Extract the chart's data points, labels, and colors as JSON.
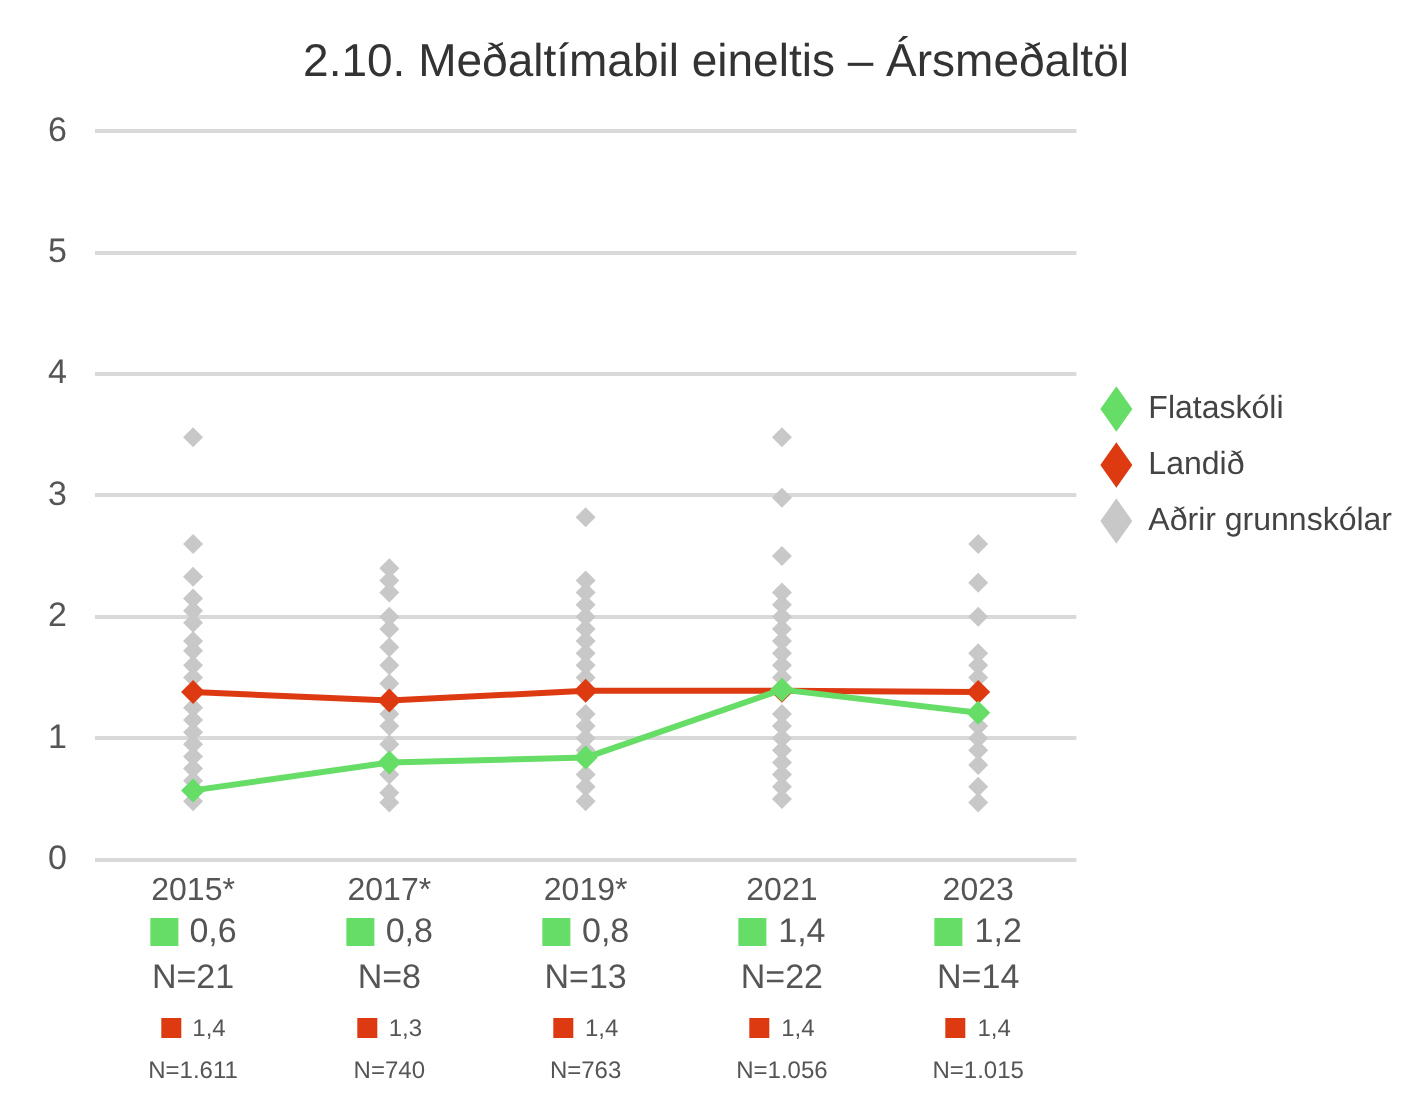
{
  "chart_data": {
    "type": "line",
    "title": "2.10. Meðaltímabil eineltis – Ársmeðaltöl",
    "categories": [
      "2015*",
      "2017*",
      "2019*",
      "2021",
      "2023"
    ],
    "series": [
      {
        "name": "Flataskóli",
        "color": "#66dd66",
        "values": [
          0.57,
          0.8,
          0.84,
          1.4,
          1.21
        ],
        "value_labels": [
          "0,6",
          "0,8",
          "0,8",
          "1,4",
          "1,2"
        ]
      },
      {
        "name": "Landið",
        "color": "#dd3a12",
        "values": [
          1.38,
          1.31,
          1.39,
          1.39,
          1.38
        ],
        "value_labels": [
          "1,4",
          "1,3",
          "1,4",
          "1,4",
          "1,4"
        ]
      },
      {
        "name": "Aðrir grunnskólar",
        "type": "scatter",
        "color": "#c8c8c8",
        "values": [
          3.48,
          2.4,
          2.82,
          3.48,
          2.6
        ]
      },
      {
        "type": "scatter",
        "color": "#c8c8c8",
        "values": [
          2.6,
          2.3,
          2.3,
          2.98,
          2.28
        ]
      },
      {
        "type": "scatter",
        "color": "#c8c8c8",
        "values": [
          2.33,
          2.2,
          2.2,
          2.5,
          2.0
        ]
      },
      {
        "type": "scatter",
        "color": "#c8c8c8",
        "values": [
          2.15,
          2.0,
          2.1,
          2.2,
          1.7
        ]
      },
      {
        "type": "scatter",
        "color": "#c8c8c8",
        "values": [
          2.05,
          1.9,
          2.0,
          2.1,
          1.6
        ]
      },
      {
        "type": "scatter",
        "color": "#c8c8c8",
        "values": [
          1.95,
          1.75,
          1.9,
          2.0,
          1.5
        ]
      },
      {
        "type": "scatter",
        "color": "#c8c8c8",
        "values": [
          1.8,
          1.6,
          1.8,
          1.9,
          1.1
        ]
      },
      {
        "type": "scatter",
        "color": "#c8c8c8",
        "values": [
          1.72,
          1.45,
          1.7,
          1.8,
          1.0
        ]
      },
      {
        "type": "scatter",
        "color": "#c8c8c8",
        "values": [
          1.6,
          1.2,
          1.6,
          1.7,
          0.9
        ]
      },
      {
        "type": "scatter",
        "color": "#c8c8c8",
        "values": [
          1.5,
          1.1,
          1.5,
          1.6,
          0.78
        ]
      },
      {
        "type": "scatter",
        "color": "#c8c8c8",
        "values": [
          1.25,
          0.95,
          1.2,
          1.5,
          0.6
        ]
      },
      {
        "type": "scatter",
        "color": "#c8c8c8",
        "values": [
          1.15,
          0.7,
          1.1,
          1.2,
          0.47
        ]
      },
      {
        "type": "scatter",
        "color": "#c8c8c8",
        "values": [
          1.05,
          0.55,
          1.0,
          1.1,
          null
        ]
      },
      {
        "type": "scatter",
        "color": "#c8c8c8",
        "values": [
          0.95,
          0.47,
          0.9,
          1.0,
          null
        ]
      },
      {
        "type": "scatter",
        "color": "#c8c8c8",
        "values": [
          0.85,
          null,
          0.7,
          0.9,
          null
        ]
      },
      {
        "type": "scatter",
        "color": "#c8c8c8",
        "values": [
          0.75,
          null,
          0.6,
          0.8,
          null
        ]
      },
      {
        "type": "scatter",
        "color": "#c8c8c8",
        "values": [
          0.65,
          null,
          0.48,
          0.7,
          null
        ]
      },
      {
        "type": "scatter",
        "color": "#c8c8c8",
        "values": [
          0.48,
          null,
          null,
          0.6,
          null
        ]
      },
      {
        "type": "scatter",
        "color": "#c8c8c8",
        "values": [
          null,
          null,
          null,
          0.5,
          null
        ]
      }
    ],
    "annotations": [
      "N=21",
      "N=8",
      "N=13",
      "N=22",
      "N=14",
      "N=1.611",
      "N=740",
      "N=763",
      "N=1.056",
      "N=1.015"
    ],
    "ylim": [
      0,
      6
    ],
    "yticks": [
      0,
      1,
      2,
      3,
      4,
      5,
      6
    ],
    "grid": "y",
    "legend": "right",
    "marker": "diamond",
    "line_style": "solid"
  }
}
